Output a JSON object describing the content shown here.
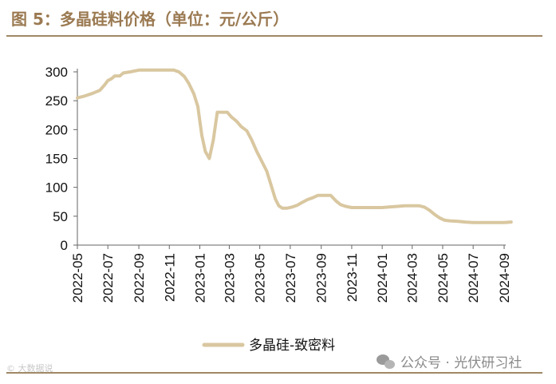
{
  "title": "图 5：多晶硅料价格（单位：元/公斤）",
  "watermark_left": "© 大数据说",
  "watermark_right": "公众号 · 光伏研习社",
  "icons": {
    "watermark": "wechat-icon"
  },
  "chart_data": {
    "type": "line",
    "title": "图 5：多晶硅料价格（单位：元/公斤）",
    "xlabel": "",
    "ylabel": "",
    "ylim": [
      0,
      300
    ],
    "yticks": [
      0,
      50,
      100,
      150,
      200,
      250,
      300
    ],
    "xlim": [
      "2022-05",
      "2024-09"
    ],
    "xticks": [
      "2022-05",
      "2022-07",
      "2022-09",
      "2022-11",
      "2023-01",
      "2023-03",
      "2023-05",
      "2023-07",
      "2023-09",
      "2023-11",
      "2024-01",
      "2024-03",
      "2024-05",
      "2024-07",
      "2024-09"
    ],
    "grid": false,
    "legend": "bottom-center",
    "series": [
      {
        "name": "多晶硅-致密料",
        "color": "#d9c7a0",
        "x": [
          "2022-05-01",
          "2022-05-15",
          "2022-06-01",
          "2022-06-15",
          "2022-06-25",
          "2022-07-01",
          "2022-07-08",
          "2022-07-15",
          "2022-07-25",
          "2022-08-01",
          "2022-08-15",
          "2022-09-01",
          "2022-09-15",
          "2022-10-01",
          "2022-10-15",
          "2022-11-01",
          "2022-11-10",
          "2022-11-20",
          "2022-12-01",
          "2022-12-10",
          "2022-12-20",
          "2022-12-28",
          "2023-01-05",
          "2023-01-12",
          "2023-01-20",
          "2023-01-28",
          "2023-02-05",
          "2023-02-15",
          "2023-02-25",
          "2023-03-05",
          "2023-03-15",
          "2023-03-25",
          "2023-04-05",
          "2023-04-15",
          "2023-04-25",
          "2023-05-05",
          "2023-05-15",
          "2023-05-25",
          "2023-06-01",
          "2023-06-08",
          "2023-06-15",
          "2023-06-25",
          "2023-07-05",
          "2023-07-15",
          "2023-07-25",
          "2023-08-05",
          "2023-08-15",
          "2023-08-25",
          "2023-09-01",
          "2023-09-10",
          "2023-09-20",
          "2023-10-01",
          "2023-10-10",
          "2023-10-20",
          "2023-11-01",
          "2023-11-10",
          "2023-11-20",
          "2023-12-01",
          "2023-12-15",
          "2024-01-01",
          "2024-01-15",
          "2024-02-01",
          "2024-02-15",
          "2024-03-01",
          "2024-03-15",
          "2024-03-25",
          "2024-04-05",
          "2024-04-15",
          "2024-04-25",
          "2024-05-05",
          "2024-05-15",
          "2024-06-01",
          "2024-06-15",
          "2024-07-01",
          "2024-07-15",
          "2024-08-01",
          "2024-08-15",
          "2024-09-01",
          "2024-09-15"
        ],
        "values": [
          255,
          258,
          263,
          268,
          278,
          285,
          288,
          293,
          293,
          298,
          300,
          303,
          303,
          303,
          303,
          303,
          303,
          300,
          292,
          280,
          262,
          240,
          190,
          162,
          150,
          182,
          230,
          230,
          230,
          222,
          215,
          205,
          198,
          182,
          162,
          145,
          128,
          100,
          80,
          68,
          64,
          64,
          66,
          69,
          74,
          79,
          82,
          86,
          86,
          86,
          86,
          76,
          70,
          67,
          65,
          65,
          65,
          65,
          65,
          65,
          66,
          67,
          68,
          68,
          68,
          66,
          60,
          53,
          47,
          43,
          42,
          41,
          40,
          39,
          39,
          39,
          39,
          39,
          40
        ]
      }
    ]
  }
}
